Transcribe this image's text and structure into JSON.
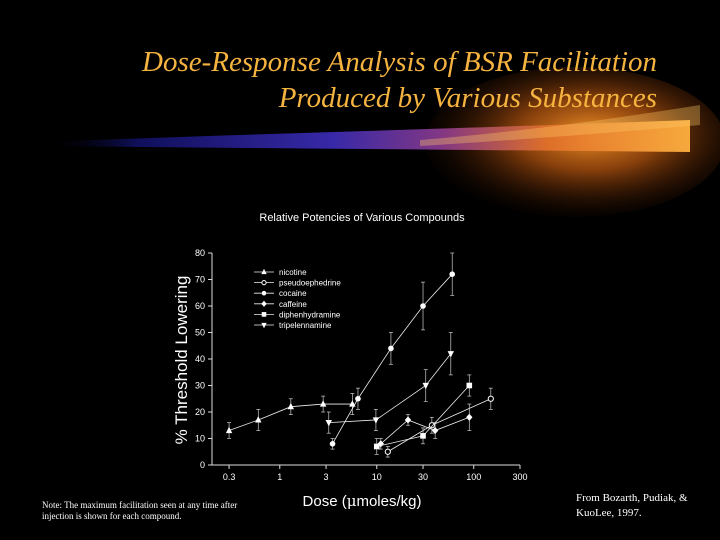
{
  "slide": {
    "title_line1": "Dose-Response Analysis of BSR Facilitation",
    "title_line2": "Produced by Various Substances",
    "note": "Note: The maximum facilitation seen at any time after injection is shown for each compound.",
    "credit": "From Bozarth, Pudiak, & KuoLee, 1997.",
    "colors": {
      "title": "#f5b33f",
      "background": "#000000",
      "swoosh_core": "#ff8c1a",
      "swoosh_tail": "#3030c0"
    }
  },
  "chart_data": {
    "type": "line",
    "title": "Relative Potencies of Various Compounds",
    "xlabel_prefix": "Dose (",
    "xlabel_mu": "μ",
    "xlabel_suffix": "moles/kg)",
    "ylabel": "% Threshold Lowering",
    "xscale": "log",
    "xlim": [
      0.2,
      300
    ],
    "ylim": [
      0,
      80
    ],
    "xticks": [
      0.3,
      1,
      3,
      10,
      30,
      100,
      300
    ],
    "xtick_labels": [
      "0.3",
      "1",
      "3",
      "10",
      "30",
      "100",
      "300"
    ],
    "yticks": [
      0,
      10,
      20,
      30,
      40,
      50,
      60,
      70,
      80
    ],
    "ytick_labels": [
      "0",
      "10",
      "20",
      "30",
      "40",
      "50",
      "60",
      "70",
      "80"
    ],
    "legend_position": "top-left",
    "grid": false,
    "series": [
      {
        "name": "nicotine",
        "marker": "triangle-up",
        "points": [
          [
            0.3,
            13,
            3
          ],
          [
            0.6,
            17,
            4
          ],
          [
            1.3,
            22,
            3
          ],
          [
            2.8,
            23,
            3
          ],
          [
            5.6,
            23,
            4
          ]
        ]
      },
      {
        "name": "pseudoephedrine",
        "marker": "circle-open",
        "points": [
          [
            13,
            5,
            2
          ],
          [
            37,
            15,
            3
          ],
          [
            150,
            25,
            4
          ]
        ]
      },
      {
        "name": "cocaine",
        "marker": "circle",
        "points": [
          [
            3.5,
            8,
            2
          ],
          [
            6.4,
            25,
            4
          ],
          [
            14,
            44,
            6
          ],
          [
            30,
            60,
            9
          ],
          [
            60,
            72,
            8
          ]
        ]
      },
      {
        "name": "caffeine",
        "marker": "diamond",
        "points": [
          [
            11,
            8,
            2
          ],
          [
            21,
            17,
            2
          ],
          [
            40,
            13,
            3
          ],
          [
            90,
            18,
            5
          ]
        ]
      },
      {
        "name": "diphenhydramine",
        "marker": "square",
        "points": [
          [
            10,
            7,
            3
          ],
          [
            30,
            11,
            3
          ],
          [
            90,
            30,
            4
          ]
        ]
      },
      {
        "name": "tripelennamine",
        "marker": "triangle-down",
        "points": [
          [
            3.2,
            16,
            4
          ],
          [
            9.8,
            17,
            4
          ],
          [
            32,
            30,
            6
          ],
          [
            58,
            42,
            8
          ]
        ]
      }
    ]
  }
}
